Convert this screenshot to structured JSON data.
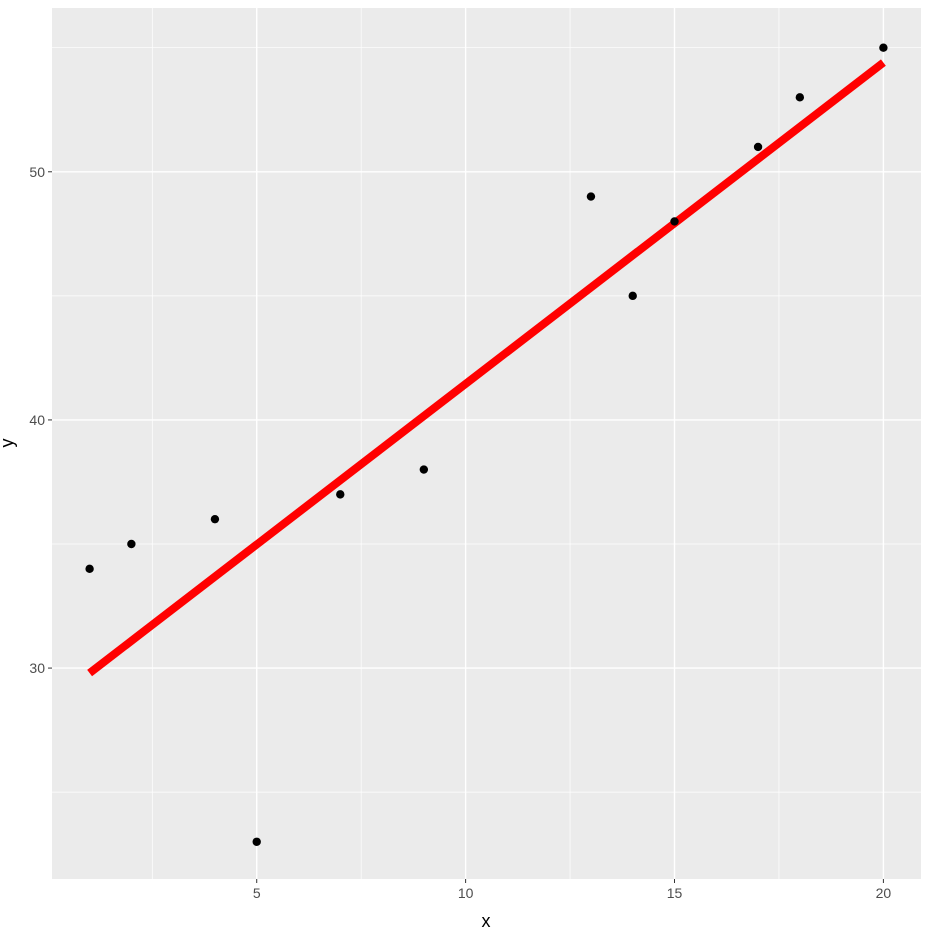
{
  "chart_data": {
    "type": "scatter",
    "xlabel": "x",
    "ylabel": "y",
    "xlim": [
      0.1,
      20.9
    ],
    "ylim": [
      21.5,
      56.6
    ],
    "xticks": [
      5,
      10,
      15,
      20
    ],
    "yticks": [
      30,
      40,
      50
    ],
    "grid": true,
    "colors": {
      "panel_background": "#ebebeb",
      "gridline": "#ffffff",
      "points": "#000000",
      "fit_line": "#ff0000",
      "tick_label": "#4d4d4d",
      "tick_mark": "#333333"
    },
    "points": [
      {
        "x": 1,
        "y": 34
      },
      {
        "x": 2,
        "y": 35
      },
      {
        "x": 4,
        "y": 36
      },
      {
        "x": 5,
        "y": 23
      },
      {
        "x": 7,
        "y": 37
      },
      {
        "x": 9,
        "y": 38
      },
      {
        "x": 13,
        "y": 49
      },
      {
        "x": 14,
        "y": 45
      },
      {
        "x": 15,
        "y": 48
      },
      {
        "x": 17,
        "y": 51
      },
      {
        "x": 18,
        "y": 53
      },
      {
        "x": 20,
        "y": 55
      }
    ],
    "fit_line": {
      "x": [
        1,
        20
      ],
      "y": [
        29.8,
        54.4
      ]
    }
  }
}
